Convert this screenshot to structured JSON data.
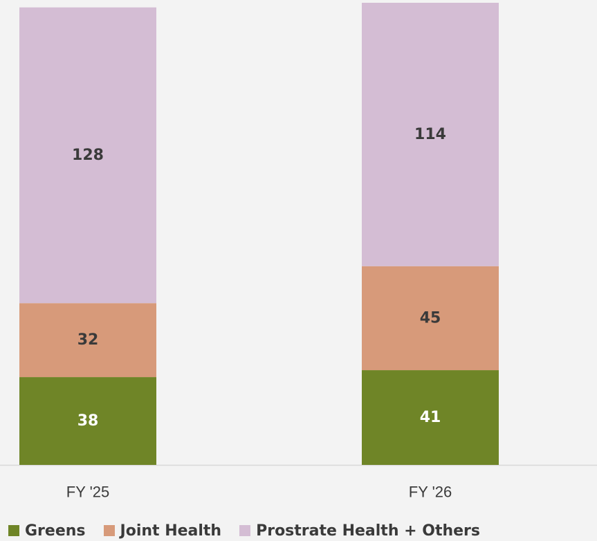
{
  "chart_data": {
    "type": "bar",
    "stacked": true,
    "categories": [
      "FY '25",
      "FY '26"
    ],
    "series": [
      {
        "name": "Greens",
        "values": [
          38,
          41
        ],
        "color": "#6f8527",
        "label_color": "#ffffff"
      },
      {
        "name": "Joint Health",
        "values": [
          32,
          45
        ],
        "color": "#d79a7a",
        "label_color": "#3a3a3a"
      },
      {
        "name": "Prostrate Health + Others",
        "values": [
          128,
          114
        ],
        "color": "#d4bdd4",
        "label_color": "#3a3a3a"
      }
    ],
    "title": "",
    "xlabel": "",
    "ylabel": "",
    "legend_position": "bottom-left",
    "grid": false
  },
  "colors": {
    "background": "#f3f3f3",
    "axis_line": "#d9d9d9",
    "text": "#3a3a3a"
  }
}
